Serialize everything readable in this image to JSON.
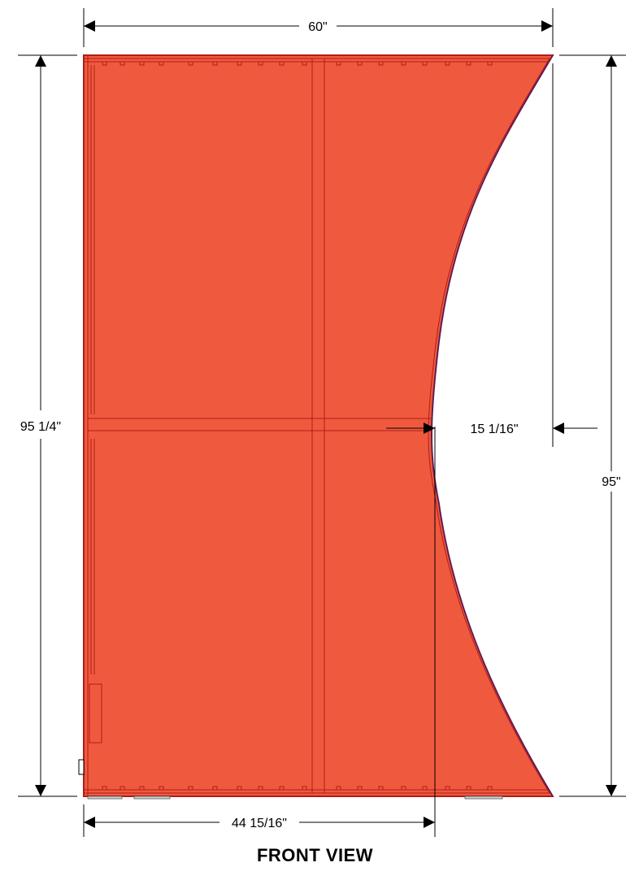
{
  "colors": {
    "panel_fill": "#ef5a3f",
    "panel_stroke": "#b01c14",
    "edge_trim": "#3a1f7a",
    "dimension_line": "#000000"
  },
  "dimensions": {
    "overall_width": "60\"",
    "left_height": "95 1/4\"",
    "right_height": "95\"",
    "curve_depth": "15 1/16\"",
    "bottom_width": "44 15/16\""
  },
  "caption": "FRONT VIEW"
}
